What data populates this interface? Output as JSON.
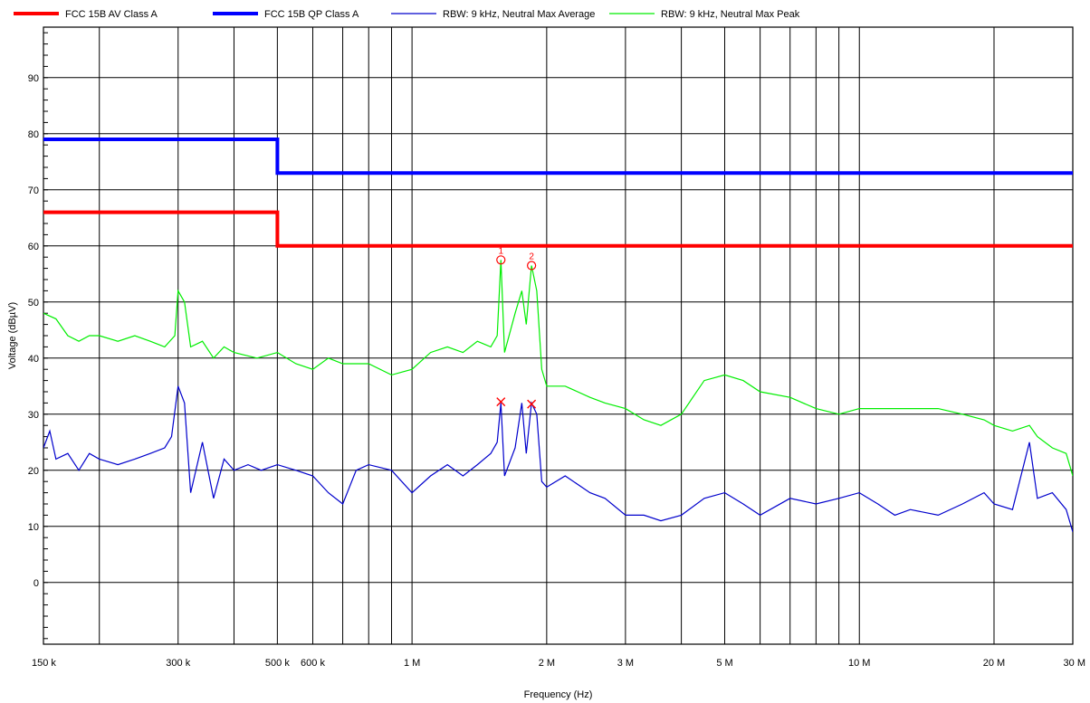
{
  "chart_data": {
    "type": "line",
    "xscale": "log",
    "xlim": [
      150000,
      30000000
    ],
    "ylim": [
      -11,
      99
    ],
    "grid": true,
    "legend_position": "top",
    "xlabel": "Frequency (Hz)",
    "ylabel": "Voltage (dBµV)",
    "x_ticks": [
      {
        "value": 150000,
        "label": "150 k"
      },
      {
        "value": 300000,
        "label": "300 k"
      },
      {
        "value": 500000,
        "label": "500 k"
      },
      {
        "value": 600000,
        "label": "600 k"
      },
      {
        "value": 1000000,
        "label": "1 M"
      },
      {
        "value": 2000000,
        "label": "2 M"
      },
      {
        "value": 3000000,
        "label": "3 M"
      },
      {
        "value": 5000000,
        "label": "5 M"
      },
      {
        "value": 10000000,
        "label": "10 M"
      },
      {
        "value": 20000000,
        "label": "20 M"
      },
      {
        "value": 30000000,
        "label": "30 M"
      }
    ],
    "x_minor_grid": [
      200000,
      400000,
      700000,
      800000,
      900000,
      4000000,
      6000000,
      7000000,
      8000000,
      9000000
    ],
    "y_ticks": [
      0,
      10,
      20,
      30,
      40,
      50,
      60,
      70,
      80,
      90
    ],
    "series": [
      {
        "name": "FCC 15B AV Class A",
        "color": "#ff0000",
        "kind": "limit",
        "points": [
          [
            150000,
            66
          ],
          [
            500000,
            66
          ],
          [
            500000,
            60
          ],
          [
            30000000,
            60
          ]
        ]
      },
      {
        "name": "FCC 15B QP Class A",
        "color": "#0000ff",
        "kind": "limit",
        "points": [
          [
            150000,
            79
          ],
          [
            500000,
            79
          ],
          [
            500000,
            73
          ],
          [
            30000000,
            73
          ]
        ]
      },
      {
        "name": "RBW: 9 kHz, Neutral Max Average",
        "color": "#0000cc",
        "kind": "trace",
        "points": [
          [
            150000,
            24
          ],
          [
            155000,
            27
          ],
          [
            160000,
            22
          ],
          [
            170000,
            23
          ],
          [
            180000,
            20
          ],
          [
            190000,
            23
          ],
          [
            200000,
            22
          ],
          [
            220000,
            21
          ],
          [
            240000,
            22
          ],
          [
            260000,
            23
          ],
          [
            280000,
            24
          ],
          [
            290000,
            26
          ],
          [
            300000,
            35
          ],
          [
            310000,
            32
          ],
          [
            320000,
            16
          ],
          [
            340000,
            25
          ],
          [
            360000,
            15
          ],
          [
            380000,
            22
          ],
          [
            400000,
            20
          ],
          [
            430000,
            21
          ],
          [
            460000,
            20
          ],
          [
            500000,
            21
          ],
          [
            550000,
            20
          ],
          [
            600000,
            19
          ],
          [
            650000,
            16
          ],
          [
            700000,
            14
          ],
          [
            750000,
            20
          ],
          [
            800000,
            21
          ],
          [
            900000,
            20
          ],
          [
            1000000,
            16
          ],
          [
            1100000,
            19
          ],
          [
            1200000,
            21
          ],
          [
            1300000,
            19
          ],
          [
            1400000,
            21
          ],
          [
            1500000,
            23
          ],
          [
            1550000,
            25
          ],
          [
            1580000,
            32
          ],
          [
            1610000,
            19
          ],
          [
            1700000,
            24
          ],
          [
            1760000,
            32
          ],
          [
            1800000,
            23
          ],
          [
            1850000,
            32
          ],
          [
            1900000,
            30
          ],
          [
            1950000,
            18
          ],
          [
            2000000,
            17
          ],
          [
            2200000,
            19
          ],
          [
            2500000,
            16
          ],
          [
            2700000,
            15
          ],
          [
            3000000,
            12
          ],
          [
            3300000,
            12
          ],
          [
            3600000,
            11
          ],
          [
            4000000,
            12
          ],
          [
            4500000,
            15
          ],
          [
            5000000,
            16
          ],
          [
            5500000,
            14
          ],
          [
            6000000,
            12
          ],
          [
            7000000,
            15
          ],
          [
            8000000,
            14
          ],
          [
            9000000,
            15
          ],
          [
            10000000,
            16
          ],
          [
            11000000,
            14
          ],
          [
            12000000,
            12
          ],
          [
            13000000,
            13
          ],
          [
            15000000,
            12
          ],
          [
            17000000,
            14
          ],
          [
            19000000,
            16
          ],
          [
            20000000,
            14
          ],
          [
            22000000,
            13
          ],
          [
            24000000,
            25
          ],
          [
            25000000,
            15
          ],
          [
            27000000,
            16
          ],
          [
            29000000,
            13
          ],
          [
            30000000,
            9
          ]
        ]
      },
      {
        "name": "RBW: 9 kHz, Neutral Max Peak",
        "color": "#00ee00",
        "kind": "trace",
        "points": [
          [
            150000,
            48
          ],
          [
            160000,
            47
          ],
          [
            170000,
            44
          ],
          [
            180000,
            43
          ],
          [
            190000,
            44
          ],
          [
            200000,
            44
          ],
          [
            220000,
            43
          ],
          [
            240000,
            44
          ],
          [
            260000,
            43
          ],
          [
            280000,
            42
          ],
          [
            295000,
            44
          ],
          [
            300000,
            52
          ],
          [
            310000,
            50
          ],
          [
            320000,
            42
          ],
          [
            340000,
            43
          ],
          [
            360000,
            40
          ],
          [
            380000,
            42
          ],
          [
            400000,
            41
          ],
          [
            450000,
            40
          ],
          [
            500000,
            41
          ],
          [
            550000,
            39
          ],
          [
            600000,
            38
          ],
          [
            650000,
            40
          ],
          [
            700000,
            39
          ],
          [
            800000,
            39
          ],
          [
            900000,
            37
          ],
          [
            1000000,
            38
          ],
          [
            1100000,
            41
          ],
          [
            1200000,
            42
          ],
          [
            1300000,
            41
          ],
          [
            1400000,
            43
          ],
          [
            1500000,
            42
          ],
          [
            1550000,
            44
          ],
          [
            1580000,
            57.5
          ],
          [
            1610000,
            41
          ],
          [
            1700000,
            48
          ],
          [
            1760000,
            52
          ],
          [
            1800000,
            46
          ],
          [
            1850000,
            56.5
          ],
          [
            1900000,
            52
          ],
          [
            1950000,
            38
          ],
          [
            2000000,
            35
          ],
          [
            2200000,
            35
          ],
          [
            2500000,
            33
          ],
          [
            2700000,
            32
          ],
          [
            3000000,
            31
          ],
          [
            3300000,
            29
          ],
          [
            3600000,
            28
          ],
          [
            4000000,
            30
          ],
          [
            4500000,
            36
          ],
          [
            5000000,
            37
          ],
          [
            5500000,
            36
          ],
          [
            6000000,
            34
          ],
          [
            7000000,
            33
          ],
          [
            8000000,
            31
          ],
          [
            9000000,
            30
          ],
          [
            10000000,
            31
          ],
          [
            11000000,
            31
          ],
          [
            12000000,
            31
          ],
          [
            13000000,
            31
          ],
          [
            15000000,
            31
          ],
          [
            17000000,
            30
          ],
          [
            19000000,
            29
          ],
          [
            20000000,
            28
          ],
          [
            22000000,
            27
          ],
          [
            24000000,
            28
          ],
          [
            25000000,
            26
          ],
          [
            27000000,
            24
          ],
          [
            29000000,
            23
          ],
          [
            30000000,
            19
          ]
        ]
      }
    ],
    "peak_markers": [
      {
        "label": "1",
        "x": 1580000,
        "y": 57.5,
        "symbol": "circle",
        "color": "#ff0000"
      },
      {
        "label": "2",
        "x": 1850000,
        "y": 56.5,
        "symbol": "circle",
        "color": "#ff0000"
      },
      {
        "label": "",
        "x": 1580000,
        "y": 32.2,
        "symbol": "cross",
        "color": "#ff0000"
      },
      {
        "label": "",
        "x": 1850000,
        "y": 31.8,
        "symbol": "cross",
        "color": "#ff0000"
      }
    ]
  }
}
